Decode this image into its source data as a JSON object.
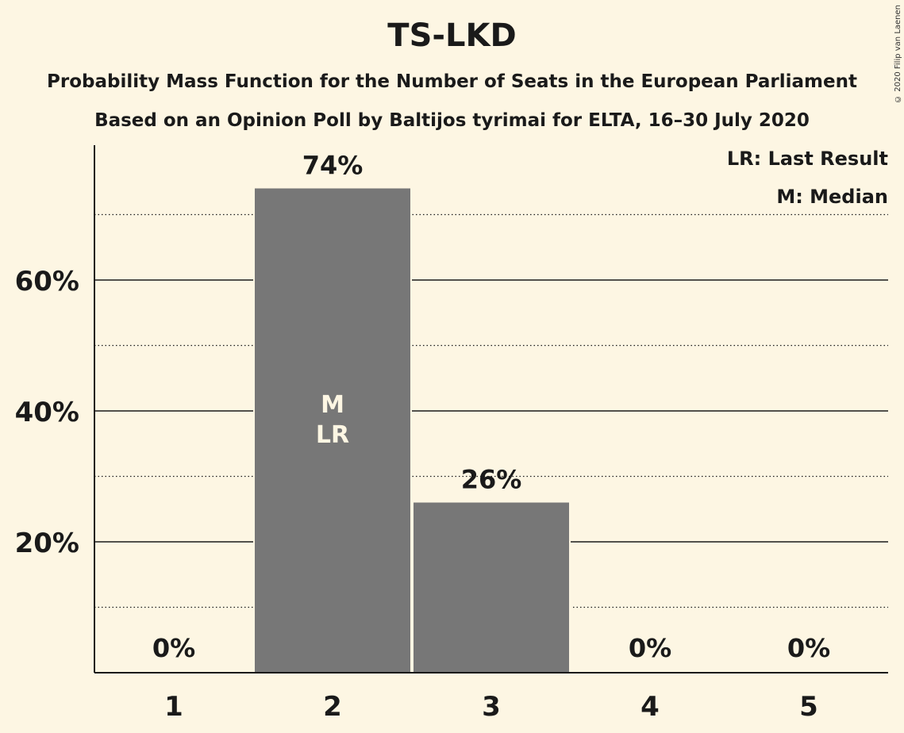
{
  "title": "TS-LKD",
  "subtitle1": "Probability Mass Function for the Number of Seats in the European Parliament",
  "subtitle2": "Based on an Opinion Poll by Baltijos tyrimai for ELTA, 16–30 July 2020",
  "copyright": "© 2020 Filip van Laenen",
  "legend": {
    "last_result": "LR: Last Result",
    "median": "M: Median"
  },
  "colors": {
    "background": "#fdf6e3",
    "bar": "#777777",
    "text": "#1a1a1a"
  },
  "chart_data": {
    "type": "bar",
    "categories": [
      "1",
      "2",
      "3",
      "4",
      "5"
    ],
    "values": [
      0,
      74,
      26,
      0,
      0
    ],
    "value_labels": [
      "0%",
      "74%",
      "26%",
      "0%",
      "0%"
    ],
    "bar_markers": [
      [],
      [
        "M",
        "LR"
      ],
      [],
      [],
      []
    ],
    "ylim": [
      0,
      80
    ],
    "yticks": [
      20,
      40,
      60
    ],
    "ytick_labels": [
      "20%",
      "40%",
      "60%"
    ],
    "minor_gridlines": [
      10,
      30,
      50,
      70
    ],
    "grid": true,
    "legend_position": "top-right"
  }
}
